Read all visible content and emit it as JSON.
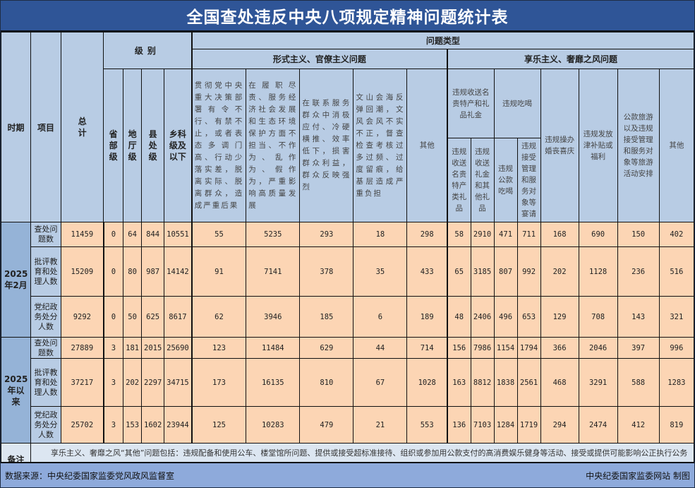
{
  "title": "全国查处违反中央八项规定精神问题统计表",
  "header": {
    "period": "时期",
    "item": "项目",
    "total": "总计",
    "level": "级别",
    "levels": [
      "省部级",
      "地厅级",
      "县处级",
      "乡科级及以下"
    ],
    "problem_type": "问题类型",
    "formalism": {
      "label": "形式主义、官僚主义问题",
      "columns": [
        "贯彻党中央重大决策部署有令不行、有禁不止，或者表态多调门高、行动少落实差，脱离实际、脱离群众，造成严重后果",
        "在履职尽责、服务经济社会发展和生态环境保护方面不担当、不作为、乱作为、假作为，严重影响高质量发展",
        "在联系服务群众中消极应付、冷硬横推、效率低下，损害群众利益，群众反映强烈",
        "文山会海反弹回潮，文风会风不实不正，督查检查考核过多过频、过度留痕，给基层造成严重负担",
        "其他"
      ]
    },
    "hedonism": {
      "label": "享乐主义、奢靡之风问题",
      "gifts": {
        "label": "违规收送名贵特产和礼品礼金",
        "columns": [
          "违规收送名贵特产类礼品",
          "违规收送礼金和其他礼品"
        ]
      },
      "dining": {
        "label": "违规吃喝",
        "columns": [
          "违规公款吃喝",
          "违规接受管理和服务对象等宴请"
        ]
      },
      "columns": [
        "违规操办婚丧喜庆",
        "违规发放津补贴或福利",
        "公款旅游以及违规接受管理和服务对象等旅游活动安排",
        "其他"
      ]
    }
  },
  "periods": [
    {
      "label": "2025年2月",
      "rows": [
        {
          "item": "查处问题数",
          "values": [
            "11459",
            "0",
            "64",
            "844",
            "10551",
            "55",
            "5235",
            "293",
            "18",
            "298",
            "58",
            "2910",
            "471",
            "711",
            "168",
            "690",
            "150",
            "402"
          ]
        },
        {
          "item": "批评教育和处理人数",
          "values": [
            "15209",
            "0",
            "80",
            "987",
            "14142",
            "91",
            "7141",
            "378",
            "35",
            "433",
            "65",
            "3185",
            "807",
            "992",
            "202",
            "1128",
            "236",
            "516"
          ]
        },
        {
          "item": "党纪政务处分人数",
          "values": [
            "9292",
            "0",
            "50",
            "625",
            "8617",
            "62",
            "3946",
            "185",
            "6",
            "189",
            "48",
            "2406",
            "496",
            "653",
            "129",
            "708",
            "143",
            "321"
          ]
        }
      ]
    },
    {
      "label": "2025年以来",
      "rows": [
        {
          "item": "查处问题数",
          "values": [
            "27889",
            "3",
            "181",
            "2015",
            "25690",
            "123",
            "11484",
            "629",
            "44",
            "714",
            "156",
            "7986",
            "1154",
            "1794",
            "366",
            "2046",
            "397",
            "996"
          ]
        },
        {
          "item": "批评教育和处理人数",
          "values": [
            "37217",
            "3",
            "202",
            "2297",
            "34715",
            "173",
            "16135",
            "810",
            "67",
            "1028",
            "163",
            "8812",
            "1838",
            "2561",
            "468",
            "3291",
            "588",
            "1283"
          ]
        },
        {
          "item": "党纪政务处分人数",
          "values": [
            "25702",
            "3",
            "153",
            "1602",
            "23944",
            "125",
            "10283",
            "479",
            "21",
            "553",
            "136",
            "7103",
            "1284",
            "1719",
            "294",
            "2474",
            "412",
            "819"
          ]
        }
      ]
    }
  ],
  "note": {
    "label": "备注",
    "text": "享乐主义、奢靡之风“其他”问题包括：违规配备和使用公车、楼堂馆所问题、提供或接受超标准接待、组织或参加用公款支付的高消费娱乐健身等活动、接受或提供可能影响公正执行公务的健身娱乐等活动、违规出入私人会所、领导干部住房违规。"
  },
  "footer": {
    "source": "数据来源：中央纪委国家监委党风政风监督室",
    "credit": "中央纪委国家监委网站  制图"
  }
}
